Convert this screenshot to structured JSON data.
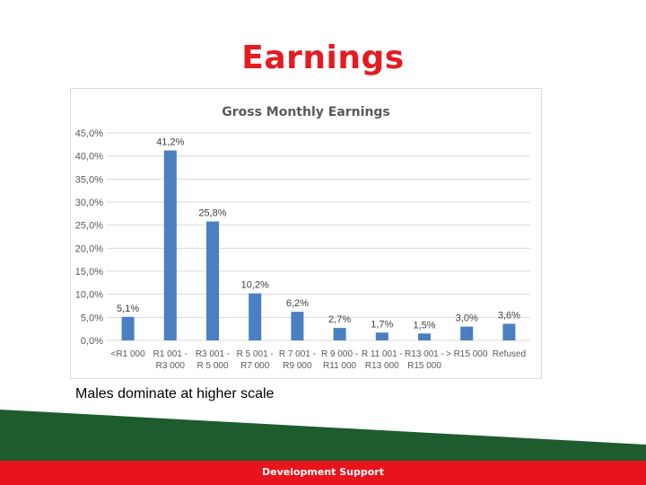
{
  "slide": {
    "title": "Earnings",
    "caption": "Males dominate at higher scale",
    "footer": "Development Support"
  },
  "colors": {
    "title": "#e31b23",
    "bar": "#4a7fc1",
    "footer_green": "#1e5c2e",
    "footer_red": "#e8141c"
  },
  "chart_data": {
    "type": "bar",
    "title": "Gross Monthly Earnings",
    "categories": [
      [
        "<R1 000"
      ],
      [
        "R1 001 -",
        "R3 000"
      ],
      [
        "R3 001 -",
        "R 5 000"
      ],
      [
        "R 5 001 -",
        "R7 000"
      ],
      [
        "R 7 001 -",
        "R9 000"
      ],
      [
        "R 9 000 -",
        "R11 000"
      ],
      [
        "R 11 001 -",
        "R13 000"
      ],
      [
        "R13 001 -",
        "R15 000"
      ],
      [
        "> R15 000"
      ],
      [
        "Refused"
      ]
    ],
    "values": [
      5.1,
      41.2,
      25.8,
      10.2,
      6.2,
      2.7,
      1.7,
      1.5,
      3.0,
      3.6
    ],
    "value_labels": [
      "5,1%",
      "41,2%",
      "25,8%",
      "10,2%",
      "6,2%",
      "2,7%",
      "1,7%",
      "1,5%",
      "3,0%",
      "3,6%"
    ],
    "ylim": [
      0,
      45
    ],
    "yticks": [
      0,
      5,
      10,
      15,
      20,
      25,
      30,
      35,
      40,
      45
    ],
    "ytick_labels": [
      "0,0%",
      "5,0%",
      "10,0%",
      "15,0%",
      "20,0%",
      "25,0%",
      "30,0%",
      "35,0%",
      "40,0%",
      "45,0%"
    ],
    "grid": true,
    "legend": "none"
  }
}
